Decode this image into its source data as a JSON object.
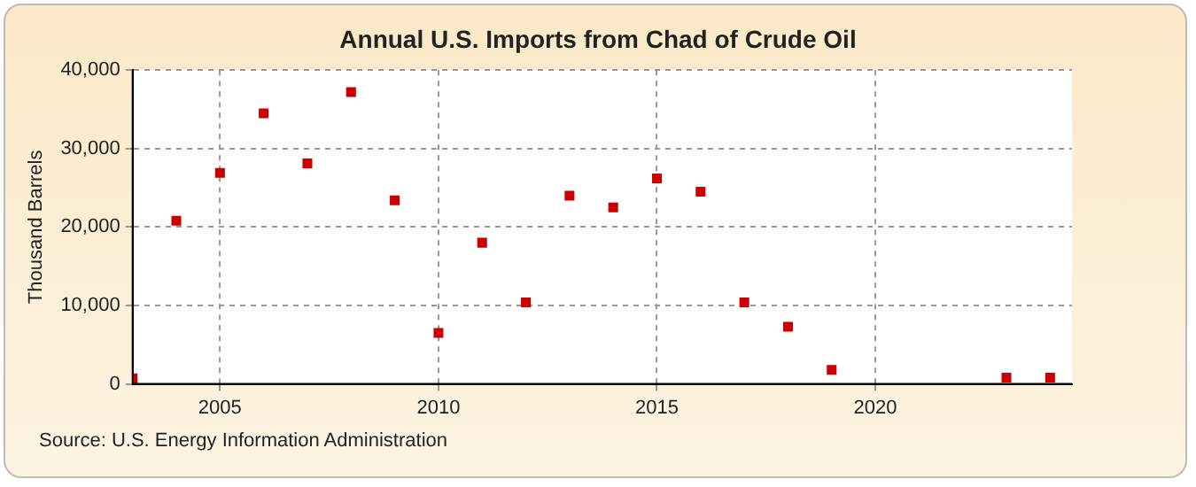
{
  "chart_data": {
    "type": "scatter",
    "title": "Annual U.S. Imports from Chad of Crude Oil",
    "ylabel": "Thousand Barrels",
    "x": [
      2003,
      2004,
      2005,
      2006,
      2007,
      2008,
      2009,
      2010,
      2011,
      2012,
      2013,
      2014,
      2015,
      2016,
      2017,
      2018,
      2019,
      2023,
      2024
    ],
    "series": [
      {
        "color": "#cc0000",
        "values": [
          700,
          20800,
          26900,
          34500,
          28100,
          37200,
          23400,
          6500,
          18000,
          10400,
          24000,
          22500,
          26200,
          24500,
          10400,
          7300,
          1800,
          800,
          800
        ]
      }
    ],
    "xlim": [
      2003,
      2024.5
    ],
    "xticks": [
      2005,
      2010,
      2015,
      2020
    ],
    "ylim": [
      0,
      40000
    ],
    "yticks": [
      {
        "value": 0,
        "label": "0"
      },
      {
        "value": 10000,
        "label": "10,000"
      },
      {
        "value": 20000,
        "label": "20,000"
      },
      {
        "value": 30000,
        "label": "30,000"
      },
      {
        "value": 40000,
        "label": "40,000"
      }
    ],
    "grid": true,
    "legend": false,
    "marker": "square",
    "annotations": [
      "Source: U.S. Energy Information Administration"
    ]
  }
}
